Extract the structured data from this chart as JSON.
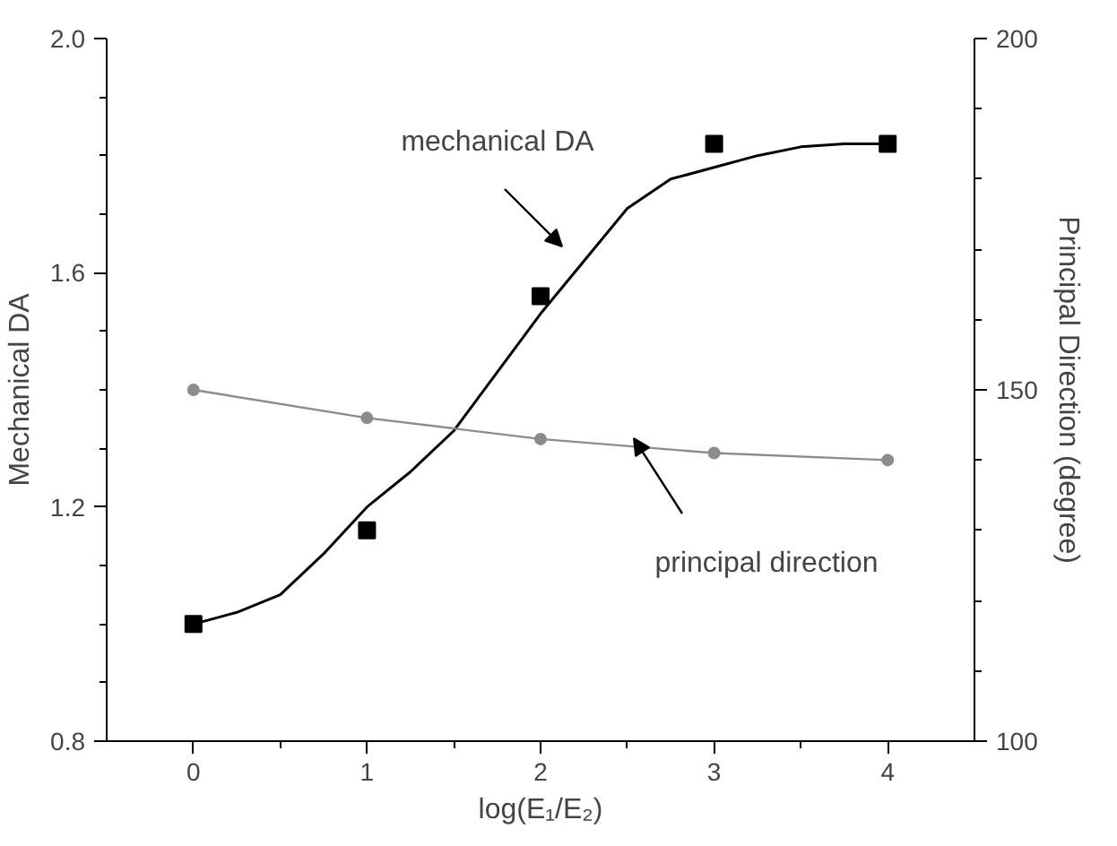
{
  "chart_data": {
    "type": "line",
    "xlabel": "log(E₁/E₂)",
    "ylabel": "Mechanical DA",
    "y2label": "Principal Direction (degree)",
    "xlim": [
      -0.5,
      4.5
    ],
    "xticks": [
      0,
      1,
      2,
      3,
      4,
      {
        "value": 0.5,
        "label": null
      },
      {
        "value": 1.5,
        "label": null
      },
      {
        "value": 2.5,
        "label": null
      },
      {
        "value": 3.5,
        "label": null
      }
    ],
    "ylim": [
      0.8,
      2.0
    ],
    "yticks": [
      0.8,
      1.2,
      1.6,
      {
        "value": 2,
        "label": "2.0"
      },
      {
        "value": 0.9,
        "label": null
      },
      {
        "value": 1.0,
        "label": null
      },
      {
        "value": 1.1,
        "label": null
      },
      {
        "value": 1.3,
        "label": null
      },
      {
        "value": 1.4,
        "label": null
      },
      {
        "value": 1.5,
        "label": null
      },
      {
        "value": 1.7,
        "label": null
      },
      {
        "value": 1.8,
        "label": null
      },
      {
        "value": 1.9,
        "label": null
      }
    ],
    "y2lim": [
      100,
      200
    ],
    "y2ticks": [
      100,
      150,
      200,
      {
        "value": 110,
        "label": null
      },
      {
        "value": 120,
        "label": null
      },
      {
        "value": 130,
        "label": null
      },
      {
        "value": 140,
        "label": null
      },
      {
        "value": 160,
        "label": null
      },
      {
        "value": 170,
        "label": null
      },
      {
        "value": 180,
        "label": null
      },
      {
        "value": 190,
        "label": null
      }
    ],
    "grid": false,
    "series": [
      {
        "type": "scatter",
        "marker": "square",
        "color": "#000000",
        "x": [
          0,
          1,
          2,
          3,
          4
        ],
        "values": [
          1.0,
          1.16,
          1.56,
          1.82,
          1.82
        ]
      },
      {
        "marker": "none",
        "color": "#000000",
        "x": [
          0,
          0.25,
          0.5,
          0.75,
          1,
          1.25,
          1.5,
          1.75,
          2,
          2.25,
          2.5,
          2.75,
          3,
          3.25,
          3.5,
          3.75,
          4
        ],
        "values": [
          1.0,
          1.02,
          1.05,
          1.12,
          1.2,
          1.26,
          1.33,
          1.43,
          1.53,
          1.62,
          1.71,
          1.76,
          1.78,
          1.8,
          1.815,
          1.82,
          1.82
        ]
      },
      {
        "marker": "circle",
        "color": "#8c8c8c",
        "axis": "y2",
        "x": [
          0,
          1,
          2,
          3,
          4
        ],
        "values": [
          150,
          146,
          143,
          141,
          140
        ]
      }
    ],
    "annotations": [
      "mechanical DA",
      "principal direction"
    ]
  }
}
